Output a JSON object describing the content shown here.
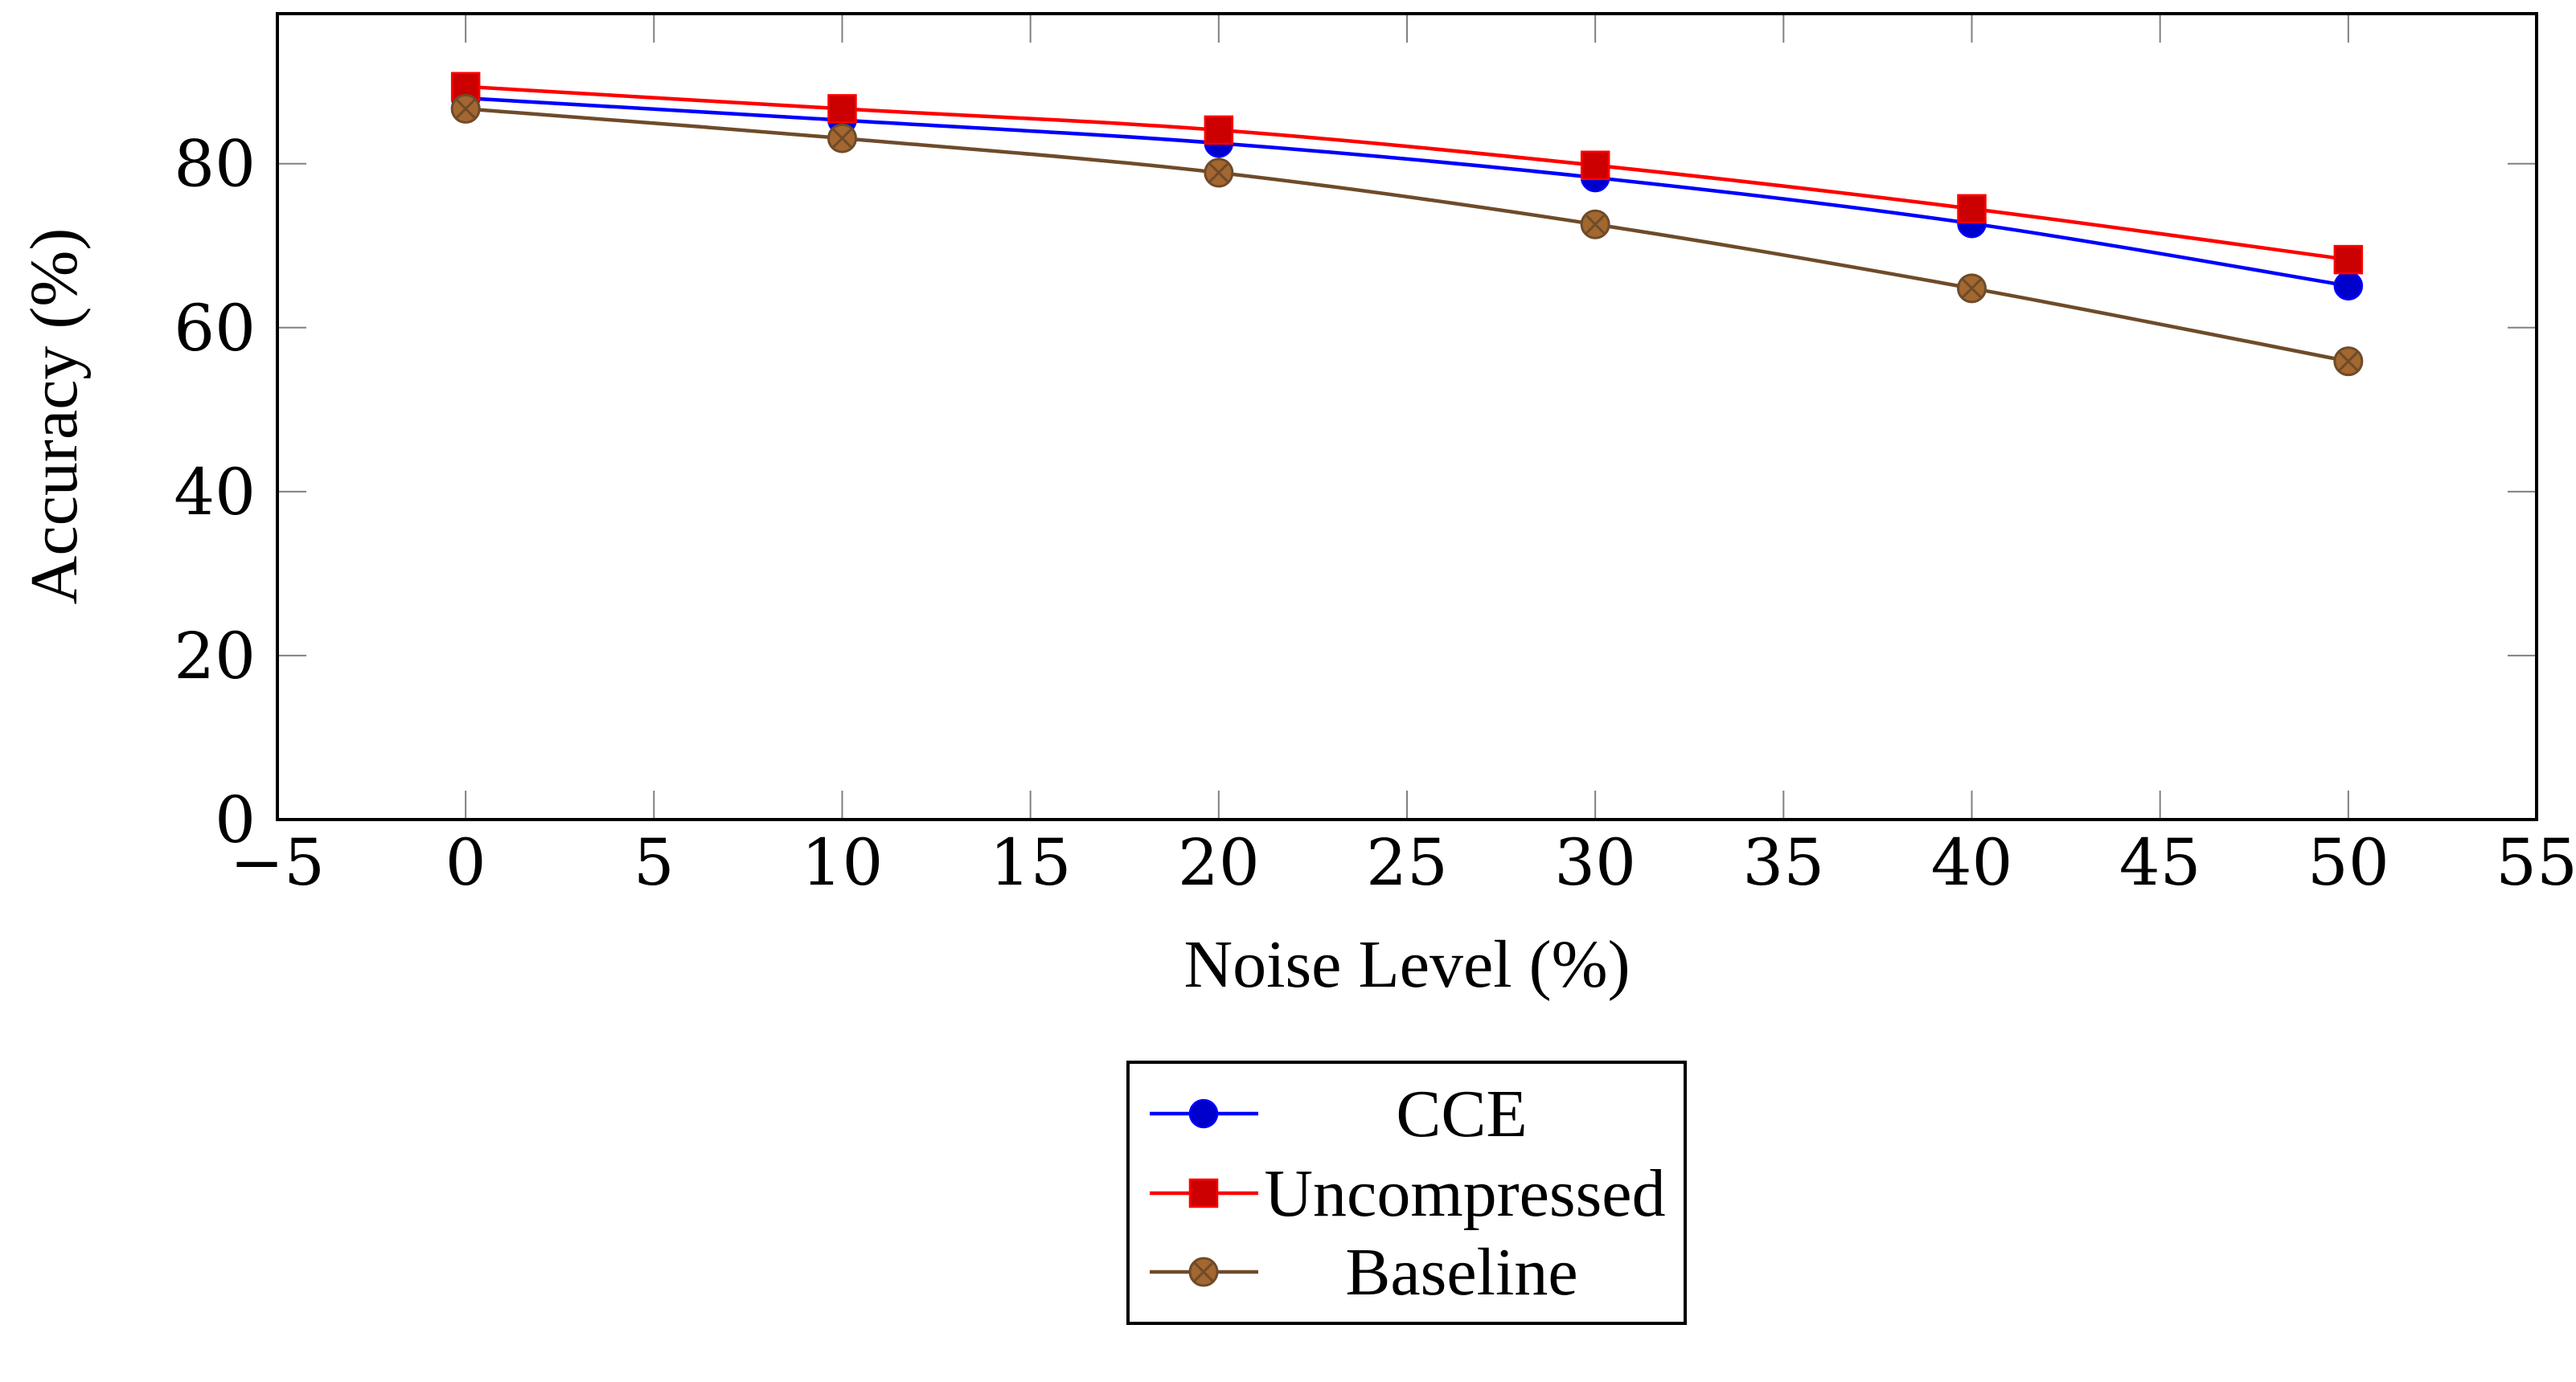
{
  "chart_data": {
    "type": "line",
    "title": "",
    "xlabel": "Noise Level (%)",
    "ylabel": "Accuracy (%)",
    "xlim": [
      -5,
      55
    ],
    "ylim": [
      0,
      98.3
    ],
    "grid": false,
    "x": [
      0,
      10,
      20,
      30,
      40,
      50
    ],
    "x_ticks": [
      -5,
      0,
      5,
      10,
      15,
      20,
      25,
      30,
      35,
      40,
      45,
      50,
      55
    ],
    "x_tick_labels": [
      "−5",
      "0",
      "5",
      "10",
      "15",
      "20",
      "25",
      "30",
      "35",
      "40",
      "45",
      "50",
      "55"
    ],
    "y_ticks": [
      0,
      20,
      40,
      60,
      80
    ],
    "y_tick_labels": [
      "0",
      "20",
      "40",
      "60",
      "80"
    ],
    "legend_position": "below",
    "series": [
      {
        "name": "CCE",
        "values": [
          88.0,
          85.3,
          82.5,
          78.3,
          72.7,
          65.1
        ],
        "color": "#0000ff",
        "marker": "circle",
        "marker_fill": "#0000cc",
        "marker_stroke": "#0000ff"
      },
      {
        "name": "Uncompressed",
        "values": [
          89.4,
          86.7,
          84.1,
          79.8,
          74.5,
          68.3
        ],
        "color": "#ff0000",
        "marker": "square",
        "marker_fill": "#cc0000",
        "marker_stroke": "#ff0000"
      },
      {
        "name": "Baseline",
        "values": [
          86.7,
          83.1,
          78.9,
          72.6,
          64.8,
          55.9
        ],
        "color": "#6e4b2a",
        "marker": "circle-x",
        "marker_fill": "#a3672f",
        "marker_stroke": "#6e4b2a"
      }
    ]
  }
}
